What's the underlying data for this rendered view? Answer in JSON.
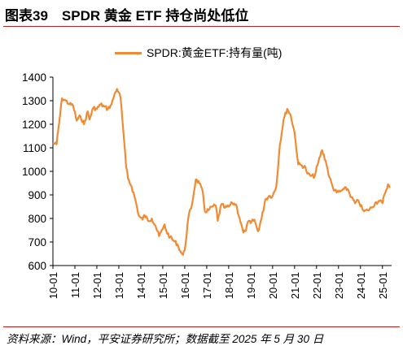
{
  "header": {
    "title": "图表39　SPDR 黄金 ETF 持仓尚处低位"
  },
  "footer": {
    "source": "资料来源：Wind，平安证券研究所；数据截至 2025 年 5 月 30 日"
  },
  "colors": {
    "series": "#f08a33",
    "rule": "#b22222",
    "axis": "#000000"
  },
  "chart_data": {
    "type": "line",
    "title": "",
    "xlabel": "",
    "ylabel": "",
    "ylim": [
      600,
      1400
    ],
    "yticks": [
      600,
      700,
      800,
      900,
      1000,
      1100,
      1200,
      1300,
      1400
    ],
    "xticks": [
      "10-01",
      "11-01",
      "12-01",
      "13-01",
      "14-01",
      "15-01",
      "16-01",
      "17-01",
      "18-01",
      "19-01",
      "20-01",
      "21-01",
      "22-01",
      "23-01",
      "24-01",
      "25-01"
    ],
    "grid": false,
    "legend": "top-center",
    "series": [
      {
        "name": "SPDR:黄金ETF:持有量(吨)",
        "color": "#f08a33",
        "points": [
          [
            "2010-01",
            1120
          ],
          [
            "2010-03",
            1115
          ],
          [
            "2010-05",
            1245
          ],
          [
            "2010-06",
            1310
          ],
          [
            "2010-08",
            1300
          ],
          [
            "2010-10",
            1285
          ],
          [
            "2010-12",
            1280
          ],
          [
            "2011-02",
            1215
          ],
          [
            "2011-04",
            1235
          ],
          [
            "2011-06",
            1200
          ],
          [
            "2011-08",
            1255
          ],
          [
            "2011-09",
            1220
          ],
          [
            "2011-11",
            1270
          ],
          [
            "2012-01",
            1265
          ],
          [
            "2012-03",
            1285
          ],
          [
            "2012-05",
            1275
          ],
          [
            "2012-07",
            1265
          ],
          [
            "2012-09",
            1285
          ],
          [
            "2012-11",
            1335
          ],
          [
            "2012-12",
            1350
          ],
          [
            "2013-01",
            1335
          ],
          [
            "2013-02",
            1310
          ],
          [
            "2013-03",
            1215
          ],
          [
            "2013-04",
            1120
          ],
          [
            "2013-05",
            1020
          ],
          [
            "2013-06",
            970
          ],
          [
            "2013-08",
            935
          ],
          [
            "2013-10",
            880
          ],
          [
            "2013-12",
            810
          ],
          [
            "2014-02",
            795
          ],
          [
            "2014-03",
            815
          ],
          [
            "2014-05",
            790
          ],
          [
            "2014-07",
            800
          ],
          [
            "2014-09",
            770
          ],
          [
            "2014-11",
            725
          ],
          [
            "2015-01",
            755
          ],
          [
            "2015-02",
            775
          ],
          [
            "2015-03",
            745
          ],
          [
            "2015-05",
            720
          ],
          [
            "2015-07",
            705
          ],
          [
            "2015-09",
            690
          ],
          [
            "2015-11",
            655
          ],
          [
            "2015-12",
            645
          ],
          [
            "2016-01",
            665
          ],
          [
            "2016-03",
            805
          ],
          [
            "2016-05",
            860
          ],
          [
            "2016-07",
            965
          ],
          [
            "2016-09",
            950
          ],
          [
            "2016-11",
            905
          ],
          [
            "2016-12",
            830
          ],
          [
            "2017-02",
            835
          ],
          [
            "2017-04",
            850
          ],
          [
            "2017-06",
            855
          ],
          [
            "2017-07",
            790
          ],
          [
            "2017-09",
            860
          ],
          [
            "2017-11",
            845
          ],
          [
            "2018-01",
            850
          ],
          [
            "2018-03",
            865
          ],
          [
            "2018-05",
            860
          ],
          [
            "2018-07",
            800
          ],
          [
            "2018-09",
            740
          ],
          [
            "2018-10",
            745
          ],
          [
            "2018-12",
            790
          ],
          [
            "2019-01",
            780
          ],
          [
            "2019-03",
            795
          ],
          [
            "2019-05",
            745
          ],
          [
            "2019-07",
            800
          ],
          [
            "2019-09",
            880
          ],
          [
            "2019-11",
            895
          ],
          [
            "2020-01",
            895
          ],
          [
            "2020-03",
            935
          ],
          [
            "2020-05",
            1115
          ],
          [
            "2020-07",
            1220
          ],
          [
            "2020-09",
            1265
          ],
          [
            "2020-11",
            1235
          ],
          [
            "2021-01",
            1165
          ],
          [
            "2021-03",
            1030
          ],
          [
            "2021-05",
            1025
          ],
          [
            "2021-07",
            1015
          ],
          [
            "2021-08",
            990
          ],
          [
            "2021-10",
            980
          ],
          [
            "2021-12",
            980
          ],
          [
            "2022-02",
            1040
          ],
          [
            "2022-04",
            1090
          ],
          [
            "2022-06",
            1045
          ],
          [
            "2022-08",
            975
          ],
          [
            "2022-10",
            930
          ],
          [
            "2022-12",
            910
          ],
          [
            "2023-02",
            915
          ],
          [
            "2023-04",
            925
          ],
          [
            "2023-06",
            925
          ],
          [
            "2023-08",
            890
          ],
          [
            "2023-10",
            865
          ],
          [
            "2023-12",
            875
          ],
          [
            "2024-02",
            840
          ],
          [
            "2024-03",
            830
          ],
          [
            "2024-05",
            835
          ],
          [
            "2024-07",
            845
          ],
          [
            "2024-09",
            865
          ],
          [
            "2024-11",
            875
          ],
          [
            "2025-01",
            865
          ],
          [
            "2025-02",
            900
          ],
          [
            "2025-04",
            945
          ],
          [
            "2025-05",
            930
          ]
        ]
      }
    ]
  }
}
